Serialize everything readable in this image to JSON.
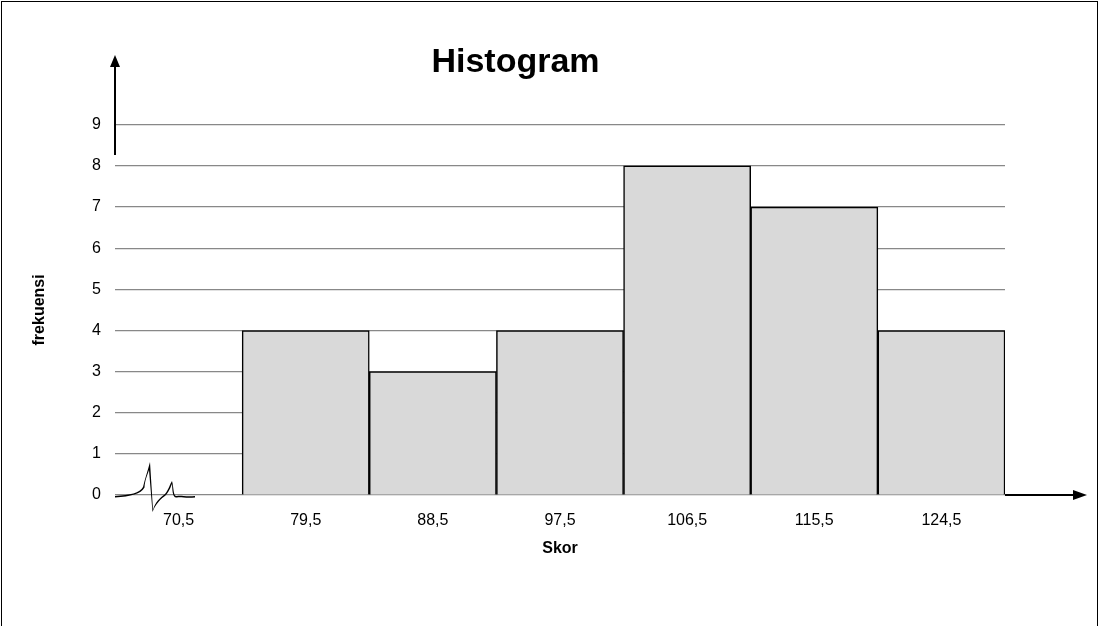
{
  "chart_data": {
    "type": "bar",
    "title": "Histogram",
    "xlabel": "Skor",
    "ylabel": "frekuensi",
    "categories": [
      "70,5",
      "79,5",
      "88,5",
      "97,5",
      "106,5",
      "115,5",
      "124,5"
    ],
    "values": [
      0,
      4,
      3,
      4,
      8,
      7,
      4
    ],
    "color": "#d9d9d9",
    "ylim": [
      0,
      9
    ],
    "yticks": [
      0,
      1,
      2,
      3,
      4,
      5,
      6,
      7,
      8,
      9
    ],
    "grid": "y",
    "legend": false
  }
}
